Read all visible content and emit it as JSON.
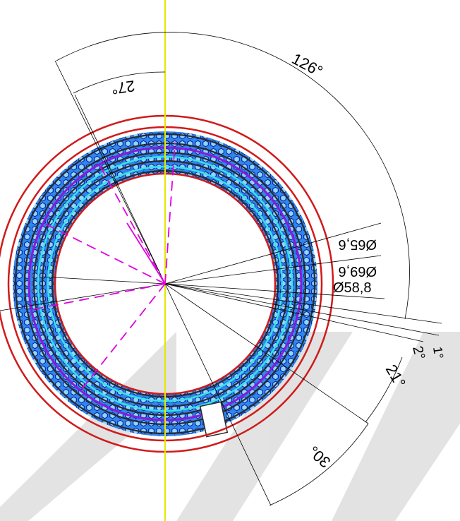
{
  "drawing": {
    "angles": {
      "a126": "126°",
      "a27": "27°",
      "a1": "1°",
      "a2": "2°",
      "a21": "21°",
      "a30": "30°"
    },
    "diameters": {
      "d65_6": "Ø65,6",
      "d69_6": "Ø69,6",
      "d58_8": "Ø58,8"
    }
  },
  "colors": {
    "outer_rings": "#d11a1a",
    "hex_fill": "#1f6fe0",
    "hex_outline": "#0a1c9a",
    "conductor": "#2a2a2a",
    "purple_path": "#8a1ad6",
    "cyan_path": "#37e2e2",
    "axis": "#e6e600",
    "magenta": "#e000e0",
    "dim": "#000000",
    "watermark": "#dcdcdc"
  }
}
